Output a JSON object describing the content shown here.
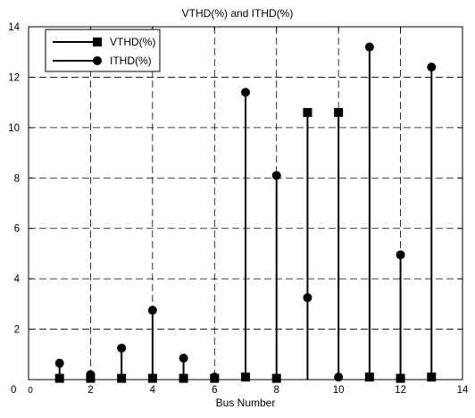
{
  "chart_data": {
    "type": "stem",
    "title": "VTHD(%) and ITHD(%)",
    "xlabel": "Bus Number",
    "ylabel": "",
    "xlim": [
      0,
      14
    ],
    "ylim": [
      0,
      14
    ],
    "xticks": [
      0,
      2,
      4,
      6,
      8,
      10,
      12,
      14
    ],
    "xtick_labels": [
      "0",
      "2",
      "4",
      "6",
      "8",
      "10",
      "12",
      "14"
    ],
    "yticks": [
      0,
      2,
      4,
      6,
      8,
      10,
      12,
      14
    ],
    "ytick_labels": [
      "0",
      "2",
      "4",
      "6",
      "8",
      "10",
      "12",
      "14"
    ],
    "origin_extra_label": "0",
    "grid": true,
    "legend_position": "top-left",
    "x": [
      1,
      2,
      3,
      4,
      5,
      6,
      7,
      8,
      9,
      10,
      11,
      12,
      13
    ],
    "series": [
      {
        "name": "VTHD(%)",
        "marker": "square",
        "values": [
          0.05,
          0.05,
          0.05,
          0.05,
          0.05,
          0.05,
          0.1,
          0.05,
          10.6,
          10.6,
          0.1,
          0.05,
          0.1
        ]
      },
      {
        "name": "ITHD(%)",
        "marker": "circle",
        "values": [
          0.65,
          0.2,
          1.25,
          2.75,
          0.85,
          0.1,
          11.4,
          8.1,
          3.25,
          0.1,
          13.2,
          4.95,
          12.4
        ]
      }
    ],
    "colors": {
      "line": "#000000",
      "grid": "#000000",
      "background": "#ffffff"
    }
  }
}
